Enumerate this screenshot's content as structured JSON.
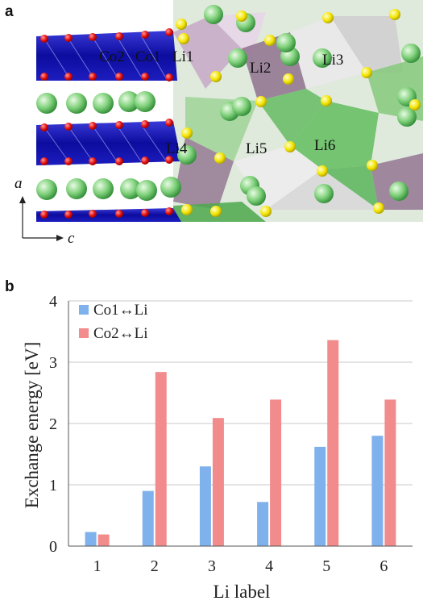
{
  "panel_a": {
    "label": "a",
    "atom_labels": [
      "Co2",
      "Co1",
      "Li1",
      "Li2",
      "Li3",
      "Li4",
      "Li5",
      "Li6"
    ],
    "axis_a": "a",
    "axis_c": "c"
  },
  "panel_b": {
    "label": "b"
  },
  "chart_data": {
    "type": "bar",
    "categories": [
      "1",
      "2",
      "3",
      "4",
      "5",
      "6"
    ],
    "series": [
      {
        "name": "Co1↔Li",
        "values": [
          0.23,
          0.9,
          1.3,
          0.72,
          1.62,
          1.8
        ],
        "color": "#7fb2ec"
      },
      {
        "name": "Co2↔Li",
        "values": [
          0.19,
          2.84,
          2.09,
          2.39,
          3.36,
          2.39
        ],
        "color": "#f28b8b"
      }
    ],
    "title": "",
    "xlabel": "Li label",
    "ylabel": "Exchange energy [eV]",
    "ylim": [
      0,
      4
    ],
    "yticks": [
      "0",
      "1",
      "2",
      "3",
      "4"
    ],
    "grid": true,
    "legend_position": "top-left"
  }
}
